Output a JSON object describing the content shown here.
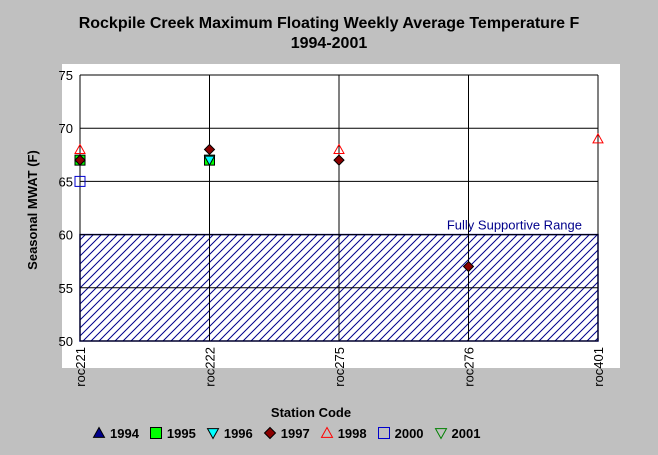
{
  "chart_data": {
    "type": "scatter",
    "title": "Rockpile Creek Maximum Floating Weekly Average Temperature F",
    "subtitle": "1994-2001",
    "xlabel": "Station Code",
    "ylabel": "Seasonal MWAT (F)",
    "categories": [
      "roc221",
      "roc222",
      "roc275",
      "roc276",
      "roc401"
    ],
    "ylim": [
      50,
      75
    ],
    "yticks": [
      50,
      55,
      60,
      65,
      70,
      75
    ],
    "grid": true,
    "band": {
      "label": "Fully Supportive Range",
      "ymin": 50,
      "ymax": 60,
      "color": "#00008b"
    },
    "series": [
      {
        "name": "1994",
        "marker": "triangle-up",
        "color": "#00008b",
        "filled": true,
        "values": [
          null,
          null,
          null,
          null,
          null
        ]
      },
      {
        "name": "1995",
        "marker": "square",
        "color": "#00ff00",
        "filled": true,
        "values": [
          67,
          67,
          null,
          null,
          null
        ]
      },
      {
        "name": "1996",
        "marker": "triangle-down",
        "color": "#00ffff",
        "filled": true,
        "values": [
          null,
          67,
          null,
          null,
          null
        ]
      },
      {
        "name": "1997",
        "marker": "diamond",
        "color": "#8b0000",
        "filled": true,
        "values": [
          67,
          68,
          67,
          57,
          null
        ]
      },
      {
        "name": "1998",
        "marker": "triangle-up",
        "color": "#ff0000",
        "filled": false,
        "values": [
          68,
          null,
          68,
          null,
          69
        ]
      },
      {
        "name": "2000",
        "marker": "square",
        "color": "#0000cd",
        "filled": false,
        "values": [
          65,
          null,
          null,
          null,
          null
        ]
      },
      {
        "name": "2001",
        "marker": "triangle-down",
        "color": "#008000",
        "filled": false,
        "values": [
          null,
          null,
          null,
          null,
          null
        ]
      }
    ],
    "legend_position": "bottom"
  }
}
